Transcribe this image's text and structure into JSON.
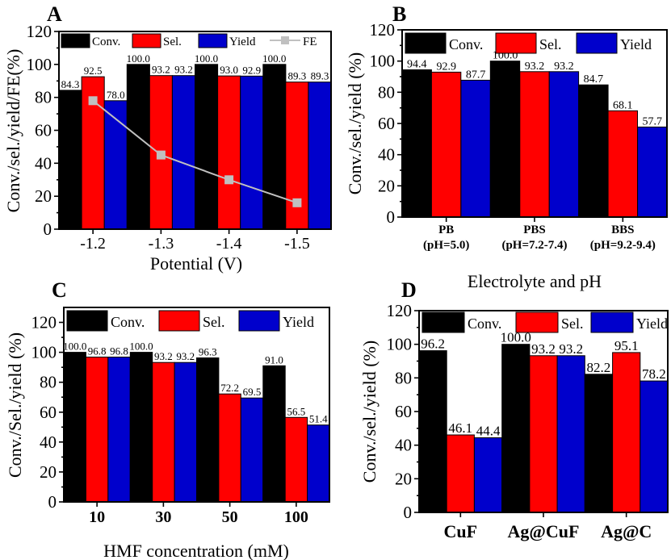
{
  "colors": {
    "conv": "#000000",
    "sel": "#ff0000",
    "yield": "#0000cc",
    "fe": "#c0c0c0"
  },
  "chart_data": [
    {
      "panel": "A",
      "type": "bar",
      "categories": [
        "-1.2",
        "-1.3",
        "-1.4",
        "-1.5"
      ],
      "series": [
        {
          "name": "Conv.",
          "values": [
            84.3,
            100.0,
            100.0,
            100.0
          ],
          "labels": [
            "84.3",
            "100.0",
            "100.0",
            "100.0"
          ]
        },
        {
          "name": "Sel.",
          "values": [
            92.5,
            93.2,
            93.0,
            89.3
          ],
          "labels": [
            "92.5",
            "93.2",
            "93.0",
            "89.3"
          ]
        },
        {
          "name": "Yield",
          "values": [
            78.0,
            93.2,
            92.9,
            89.3
          ],
          "labels": [
            "78.0",
            "93.2",
            "92.9",
            "89.3"
          ]
        }
      ],
      "line_series": {
        "name": "FE",
        "values": [
          78,
          45,
          30,
          16
        ]
      },
      "xlabel": "Potential (V)",
      "ylabel": "Conv./sel./yield/FE(%)",
      "ylim": [
        0,
        120
      ],
      "yticks": [
        "0",
        "20",
        "40",
        "60",
        "80",
        "100",
        "120"
      ],
      "legend": "top"
    },
    {
      "panel": "B",
      "type": "bar",
      "categories": [
        "PB",
        "PBS",
        "BBS"
      ],
      "category_sublabels": [
        "(pH=5.0)",
        "(pH=7.2-7.4)",
        "(pH=9.2-9.4)"
      ],
      "series": [
        {
          "name": "Conv.",
          "values": [
            94.4,
            100.0,
            84.7
          ],
          "labels": [
            "94.4",
            "100.0",
            "84.7"
          ]
        },
        {
          "name": "Sel.",
          "values": [
            92.9,
            93.2,
            68.1
          ],
          "labels": [
            "92.9",
            "93.2",
            "68.1"
          ]
        },
        {
          "name": "Yield",
          "values": [
            87.7,
            93.2,
            57.7
          ],
          "labels": [
            "87.7",
            "93.2",
            "57.7"
          ]
        }
      ],
      "xlabel": "Electrolyte and pH",
      "ylabel": "Conv./sel./yield (%)",
      "ylim": [
        0,
        120
      ],
      "yticks": [
        "0",
        "20",
        "40",
        "60",
        "80",
        "100",
        "120"
      ],
      "legend": "top"
    },
    {
      "panel": "C",
      "type": "bar",
      "categories": [
        "10",
        "30",
        "50",
        "100"
      ],
      "series": [
        {
          "name": "Conv.",
          "values": [
            100.0,
            100.0,
            96.3,
            91.0
          ],
          "labels": [
            "100.0",
            "100.0",
            "96.3",
            "91.0"
          ]
        },
        {
          "name": "Sel.",
          "values": [
            96.8,
            93.2,
            72.2,
            56.5
          ],
          "labels": [
            "96.8",
            "93.2",
            "72.2",
            "56.5"
          ]
        },
        {
          "name": "Yield",
          "values": [
            96.8,
            93.2,
            69.5,
            51.4
          ],
          "labels": [
            "96.8",
            "93.2",
            "69.5",
            "51.4"
          ]
        }
      ],
      "xlabel": "HMF concentration (mM)",
      "ylabel": "Conv./Sel./yield (%)",
      "ylim": [
        0,
        130
      ],
      "yticks": [
        "0",
        "20",
        "40",
        "60",
        "80",
        "100",
        "120"
      ],
      "legend": "top"
    },
    {
      "panel": "D",
      "type": "bar",
      "categories": [
        "CuF",
        "Ag@CuF",
        "Ag@C"
      ],
      "series": [
        {
          "name": "Conv.",
          "values": [
            96.2,
            100.0,
            82.2
          ],
          "labels": [
            "96.2",
            "100.0",
            "82.2"
          ]
        },
        {
          "name": "Sel.",
          "values": [
            46.1,
            93.2,
            95.1
          ],
          "labels": [
            "46.1",
            "93.2",
            "95.1"
          ]
        },
        {
          "name": "Yield",
          "values": [
            44.4,
            93.2,
            78.2
          ],
          "labels": [
            "44.4",
            "93.2",
            "78.2"
          ]
        }
      ],
      "xlabel": "",
      "ylabel": "Conv./sel./yield (%)",
      "ylim": [
        0,
        120
      ],
      "yticks": [
        "0",
        "20",
        "40",
        "60",
        "80",
        "100",
        "120"
      ],
      "legend": "top"
    }
  ]
}
